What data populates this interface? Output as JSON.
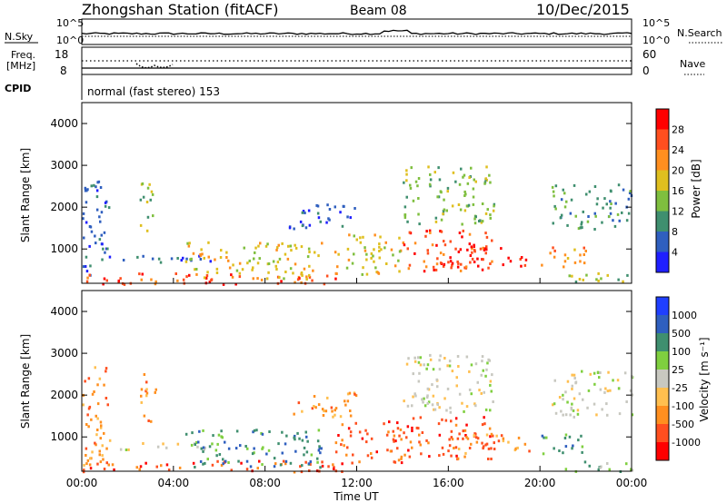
{
  "header": {
    "station": "Zhongshan Station (fitACF)",
    "beam": "Beam 08",
    "date": "10/Dec/2015"
  },
  "noise_panel": {
    "left_label": "N.Sky",
    "right_label": "N.Search",
    "left_ticks": [
      "10^5",
      "10^0"
    ],
    "right_ticks": [
      "10^5",
      "10^0"
    ]
  },
  "freq_panel": {
    "left_label": "Freq.",
    "left_unit": "[MHz]",
    "right_label": "Nave",
    "left_ticks": [
      "18",
      "8"
    ],
    "right_ticks": [
      "60",
      "0"
    ]
  },
  "cpid_panel": {
    "label": "CPID",
    "text": "normal (fast stereo) 153"
  },
  "colors": {
    "power_scale": [
      "#1f1fff",
      "#2f5fbf",
      "#3f8f6f",
      "#7fbf3f",
      "#dfbf1f",
      "#ff8f1f",
      "#ff4f1f",
      "#ff0000"
    ],
    "velocity_scale": [
      "#ff0000",
      "#ff4f1f",
      "#ff8f1f",
      "#ffbf4f",
      "#c8c8c0",
      "#7fcf3f",
      "#3f8f6f",
      "#2f5fbf",
      "#1f3fff"
    ]
  },
  "chart_data": [
    {
      "type": "heatmap",
      "panel": "power",
      "ylabel": "Slant Range [km]",
      "xlabel": "",
      "y_ticks": [
        "4000",
        "3000",
        "2000",
        "1000"
      ],
      "ylim": [
        180,
        4500
      ],
      "x_ticks": [
        "00:00",
        "04:00",
        "08:00",
        "12:00",
        "16:00",
        "20:00",
        "00:00"
      ],
      "colorbar": {
        "label": "Power [dB]",
        "ticks": [
          "28",
          "24",
          "20",
          "16",
          "12",
          "8",
          "4"
        ],
        "range": [
          0,
          30
        ]
      },
      "echo_regions": [
        {
          "t0": 0.0,
          "t1": 1.2,
          "r0": 300,
          "r1": 2700,
          "c": 1
        },
        {
          "t0": 1.5,
          "t1": 6.0,
          "r0": 700,
          "r1": 900,
          "c": 1
        },
        {
          "t0": 2.5,
          "t1": 3.2,
          "r0": 1400,
          "r1": 2600,
          "c": 3
        },
        {
          "t0": 0.0,
          "t1": 11.5,
          "r0": 180,
          "r1": 450,
          "c": 6
        },
        {
          "t0": 4.5,
          "t1": 10.5,
          "r0": 300,
          "r1": 1200,
          "c": 4
        },
        {
          "t0": 9.0,
          "t1": 12.0,
          "r0": 1500,
          "r1": 2100,
          "c": 1
        },
        {
          "t0": 11.0,
          "t1": 14.0,
          "r0": 400,
          "r1": 1400,
          "c": 4
        },
        {
          "t0": 14.0,
          "t1": 18.0,
          "r0": 500,
          "r1": 1500,
          "c": 6
        },
        {
          "t0": 14.0,
          "t1": 18.0,
          "r0": 1600,
          "r1": 3000,
          "c": 3
        },
        {
          "t0": 16.0,
          "t1": 19.5,
          "r0": 600,
          "r1": 1100,
          "c": 7
        },
        {
          "t0": 20.5,
          "t1": 24.0,
          "r0": 1500,
          "r1": 2600,
          "c": 2
        },
        {
          "t0": 20.0,
          "t1": 22.0,
          "r0": 600,
          "r1": 1100,
          "c": 5
        },
        {
          "t0": 21.0,
          "t1": 24.0,
          "r0": 180,
          "r1": 450,
          "c": 3
        }
      ]
    },
    {
      "type": "heatmap",
      "panel": "velocity",
      "ylabel": "Slant Range [km]",
      "xlabel": "Time UT",
      "y_ticks": [
        "4000",
        "3000",
        "2000",
        "1000"
      ],
      "ylim": [
        180,
        4500
      ],
      "x_ticks": [
        "00:00",
        "04:00",
        "08:00",
        "12:00",
        "16:00",
        "20:00",
        "00:00"
      ],
      "colorbar": {
        "label": "Velocity [m s⁻¹]",
        "ticks": [
          "1000",
          "500",
          "100",
          "25",
          "-25",
          "-100",
          "-500",
          "-1000"
        ],
        "range": [
          -1250,
          1250
        ]
      },
      "echo_regions": [
        {
          "t0": 0.0,
          "t1": 1.2,
          "r0": 300,
          "r1": 2700,
          "c": 2
        },
        {
          "t0": 1.5,
          "t1": 6.0,
          "r0": 700,
          "r1": 900,
          "c": 4
        },
        {
          "t0": 2.5,
          "t1": 3.2,
          "r0": 1400,
          "r1": 2600,
          "c": 2
        },
        {
          "t0": 0.0,
          "t1": 11.5,
          "r0": 180,
          "r1": 450,
          "c": 1
        },
        {
          "t0": 4.5,
          "t1": 10.5,
          "r0": 300,
          "r1": 1200,
          "c": 6
        },
        {
          "t0": 9.0,
          "t1": 12.0,
          "r0": 1500,
          "r1": 2100,
          "c": 2
        },
        {
          "t0": 11.0,
          "t1": 14.0,
          "r0": 400,
          "r1": 1400,
          "c": 1
        },
        {
          "t0": 14.0,
          "t1": 18.0,
          "r0": 500,
          "r1": 1500,
          "c": 1
        },
        {
          "t0": 14.0,
          "t1": 18.0,
          "r0": 1600,
          "r1": 3000,
          "c": 4
        },
        {
          "t0": 16.0,
          "t1": 19.5,
          "r0": 600,
          "r1": 1100,
          "c": 2
        },
        {
          "t0": 20.5,
          "t1": 24.0,
          "r0": 1500,
          "r1": 2600,
          "c": 4
        },
        {
          "t0": 20.0,
          "t1": 22.0,
          "r0": 600,
          "r1": 1100,
          "c": 6
        },
        {
          "t0": 21.0,
          "t1": 24.0,
          "r0": 180,
          "r1": 450,
          "c": 5
        }
      ]
    }
  ]
}
